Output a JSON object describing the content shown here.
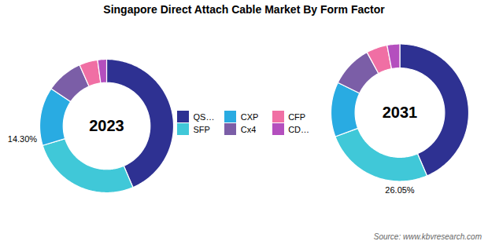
{
  "chart_data": [
    {
      "type": "pie",
      "title": "Singapore Direct Attach Cable Market By Form Factor",
      "categories": [
        "QSFP",
        "SFP",
        "CXP",
        "Cx4",
        "CFP",
        "CDFP"
      ],
      "values": [
        44,
        27,
        14.3,
        9,
        4.5,
        2.2
      ],
      "colors": [
        "#2e3192",
        "#40c8d8",
        "#29abe2",
        "#7b5ea7",
        "#f06fa4",
        "#b44fbe"
      ],
      "annotations": [
        "2023",
        "14.30%"
      ],
      "legend": "center"
    },
    {
      "type": "pie",
      "categories": [
        "QSFP",
        "SFP",
        "CXP",
        "Cx4",
        "CFP",
        "CDFP"
      ],
      "values": [
        44,
        26.05,
        13,
        10,
        5.0,
        3.0
      ],
      "colors": [
        "#2e3192",
        "#40c8d8",
        "#29abe2",
        "#7b5ea7",
        "#f06fa4",
        "#b44fbe"
      ],
      "annotations": [
        "2031",
        "26.05%"
      ],
      "source": "Source: www.kbvresearch.com"
    }
  ]
}
